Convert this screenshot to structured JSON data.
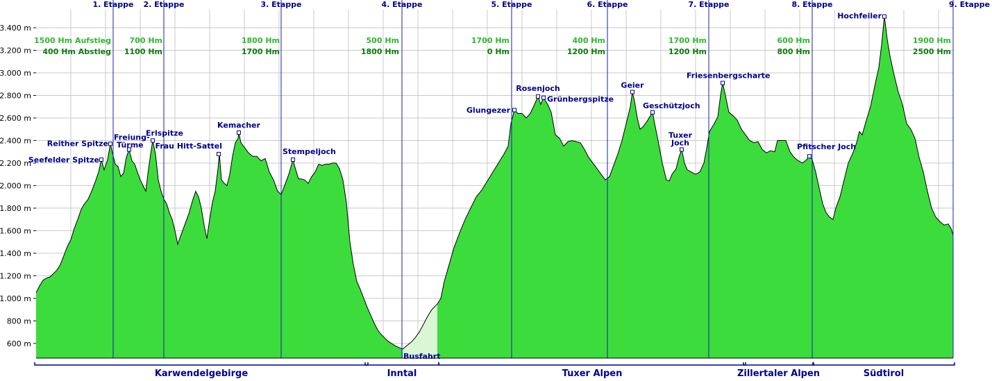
{
  "chart_data": {
    "type": "area",
    "xlabel": "",
    "ylabel": "",
    "ylim": [
      470,
      3560
    ],
    "xlim": [
      0,
      1321
    ],
    "grid": true,
    "colors": {
      "fill": "#3ddc3d",
      "bus_fill": "#d9f7d3",
      "line": "#000000",
      "grid": "#c8c8c8",
      "stage": "#1c1caa",
      "label": "#00008b"
    },
    "y_ticks": [
      {
        "v": 600,
        "label": "600 m"
      },
      {
        "v": 800,
        "label": "800 m"
      },
      {
        "v": 1000,
        "label": "1.000 m"
      },
      {
        "v": 1200,
        "label": "1.200 m"
      },
      {
        "v": 1400,
        "label": "1.400 m"
      },
      {
        "v": 1600,
        "label": "1.600 m"
      },
      {
        "v": 1800,
        "label": "1.800 m"
      },
      {
        "v": 2000,
        "label": "2.000 m"
      },
      {
        "v": 2200,
        "label": "2.200 m"
      },
      {
        "v": 2400,
        "label": "2.400 m"
      },
      {
        "v": 2600,
        "label": "2.600 m"
      },
      {
        "v": 2800,
        "label": "2.800 m"
      },
      {
        "v": 3000,
        "label": "3.000 m"
      },
      {
        "v": 3200,
        "label": "3.200 m"
      },
      {
        "v": 3400,
        "label": "3.400 m"
      }
    ],
    "stages": [
      {
        "x": 111,
        "label": "1. Etappe"
      },
      {
        "x": 184,
        "label": "2. Etappe"
      },
      {
        "x": 353,
        "label": "3. Etappe"
      },
      {
        "x": 527,
        "label": "4. Etappe"
      },
      {
        "x": 685,
        "label": "5. Etappe"
      },
      {
        "x": 823,
        "label": "6. Etappe"
      },
      {
        "x": 969,
        "label": "7. Etappe"
      },
      {
        "x": 1118,
        "label": "8. Etappe"
      },
      {
        "x": 1321,
        "label": "9. Etappe"
      }
    ],
    "elevation_gain": [
      {
        "x": 108,
        "up": "1500 Hm Aufstieg",
        "down": "400 Hm Abstieg"
      },
      {
        "x": 182,
        "up": "700  Hm",
        "down": "1100 Hm"
      },
      {
        "x": 351,
        "up": "1800 Hm",
        "down": "1700 Hm"
      },
      {
        "x": 523,
        "up": "500  Hm",
        "down": "1800 Hm"
      },
      {
        "x": 682,
        "up": "1700 Hm",
        "down": "0   Hm"
      },
      {
        "x": 820,
        "up": "400 Hm",
        "down": "1200 Hm"
      },
      {
        "x": 966,
        "up": "1700 Hm",
        "down": "1200 Hm"
      },
      {
        "x": 1115,
        "up": "600 Hm",
        "down": "800 Hm"
      },
      {
        "x": 1318,
        "up": "1900 Hm",
        "down": "2500 Hm"
      }
    ],
    "waypoints": [
      {
        "x": 94,
        "y": 2230,
        "label": "Seefelder Spitze",
        "anchor": "end",
        "dx": -3,
        "dy": 4
      },
      {
        "x": 107,
        "y": 2370,
        "label": "Reither Spitze",
        "anchor": "end",
        "dx": -3,
        "dy": 3
      },
      {
        "x": 134,
        "y": 2320,
        "label": "Freiung-",
        "anchor": "start",
        "dx": -22,
        "dy": -14
      },
      {
        "x": 134,
        "y": 2320,
        "label": "Türme",
        "anchor": "start",
        "dx": -18,
        "dy": -3
      },
      {
        "x": 168,
        "y": 2400,
        "label": "Erlspitze",
        "anchor": "start",
        "dx": -10,
        "dy": -7
      },
      {
        "x": 263,
        "y": 2280,
        "label": "Frau Hitt-Sattel",
        "anchor": "end",
        "dx": 5,
        "dy": -8
      },
      {
        "x": 292,
        "y": 2470,
        "label": "Kemacher",
        "anchor": "middle",
        "dx": 0,
        "dy": -7
      },
      {
        "x": 370,
        "y": 2230,
        "label": "Stempeljoch",
        "anchor": "start",
        "dx": -15,
        "dy": -8
      },
      {
        "x": 528,
        "y": 550,
        "label": "Busfahrt",
        "anchor": "start",
        "dx": 1,
        "dy": 14
      },
      {
        "x": 689,
        "y": 2670,
        "label": "Glungezer",
        "anchor": "end",
        "dx": -6,
        "dy": 4
      },
      {
        "x": 723,
        "y": 2790,
        "label": "Rosenjoch",
        "anchor": "middle",
        "dx": 0,
        "dy": -8
      },
      {
        "x": 731,
        "y": 2780,
        "label": "Grünbergspitze",
        "anchor": "start",
        "dx": 5,
        "dy": 6
      },
      {
        "x": 859,
        "y": 2830,
        "label": "Geier",
        "anchor": "middle",
        "dx": 0,
        "dy": -6
      },
      {
        "x": 888,
        "y": 2650,
        "label": "Geschützjoch",
        "anchor": "start",
        "dx": -14,
        "dy": -6
      },
      {
        "x": 930,
        "y": 2320,
        "label": "Tuxer",
        "anchor": "middle",
        "dx": -2,
        "dy": -17
      },
      {
        "x": 930,
        "y": 2320,
        "label": "Joch",
        "anchor": "middle",
        "dx": -2,
        "dy": -6
      },
      {
        "x": 989,
        "y": 2910,
        "label": "Friesenbergscharte",
        "anchor": "start",
        "dx": -52,
        "dy": -7
      },
      {
        "x": 1114,
        "y": 2260,
        "label": "Pfitscher Joch",
        "anchor": "start",
        "dx": -18,
        "dy": -10
      },
      {
        "x": 1222,
        "y": 3500,
        "label": "Hochfeiler",
        "anchor": "end",
        "dx": -4,
        "dy": 3
      }
    ],
    "regions": [
      {
        "x0": 0,
        "x1": 476,
        "label": "Karwendelgebirge"
      },
      {
        "x0": 476,
        "x1": 578,
        "label": "Inntal"
      },
      {
        "x0": 582,
        "x1": 1020,
        "label": "Tuxer Alpen"
      },
      {
        "x0": 1021,
        "x1": 1118,
        "label": "Zillertaler Alpen"
      },
      {
        "x0": 1121,
        "x1": 1321,
        "label": "Südtirol"
      }
    ],
    "bus_segment": [
      528,
      578
    ],
    "profile": [
      [
        0,
        1050
      ],
      [
        5,
        1110
      ],
      [
        10,
        1160
      ],
      [
        15,
        1180
      ],
      [
        20,
        1190
      ],
      [
        25,
        1220
      ],
      [
        30,
        1250
      ],
      [
        35,
        1300
      ],
      [
        40,
        1380
      ],
      [
        45,
        1460
      ],
      [
        50,
        1520
      ],
      [
        55,
        1620
      ],
      [
        60,
        1700
      ],
      [
        65,
        1790
      ],
      [
        70,
        1840
      ],
      [
        75,
        1880
      ],
      [
        80,
        1950
      ],
      [
        85,
        2030
      ],
      [
        90,
        2120
      ],
      [
        94,
        2230
      ],
      [
        98,
        2140
      ],
      [
        103,
        2230
      ],
      [
        107,
        2370
      ],
      [
        110,
        2290
      ],
      [
        114,
        2190
      ],
      [
        118,
        2170
      ],
      [
        122,
        2080
      ],
      [
        126,
        2110
      ],
      [
        130,
        2250
      ],
      [
        134,
        2320
      ],
      [
        138,
        2220
      ],
      [
        142,
        2190
      ],
      [
        146,
        2120
      ],
      [
        150,
        2050
      ],
      [
        154,
        2000
      ],
      [
        158,
        1950
      ],
      [
        162,
        2150
      ],
      [
        166,
        2320
      ],
      [
        168,
        2400
      ],
      [
        172,
        2280
      ],
      [
        176,
        2050
      ],
      [
        180,
        1950
      ],
      [
        184,
        1880
      ],
      [
        188,
        1840
      ],
      [
        192,
        1760
      ],
      [
        196,
        1700
      ],
      [
        200,
        1600
      ],
      [
        204,
        1480
      ],
      [
        208,
        1550
      ],
      [
        214,
        1650
      ],
      [
        220,
        1750
      ],
      [
        226,
        1880
      ],
      [
        230,
        1950
      ],
      [
        234,
        1900
      ],
      [
        238,
        1800
      ],
      [
        242,
        1650
      ],
      [
        246,
        1530
      ],
      [
        250,
        1700
      ],
      [
        254,
        1850
      ],
      [
        258,
        1950
      ],
      [
        262,
        2150
      ],
      [
        264,
        2280
      ],
      [
        267,
        2050
      ],
      [
        271,
        2020
      ],
      [
        275,
        2000
      ],
      [
        279,
        2100
      ],
      [
        283,
        2260
      ],
      [
        287,
        2380
      ],
      [
        291,
        2420
      ],
      [
        292,
        2470
      ],
      [
        295,
        2380
      ],
      [
        300,
        2340
      ],
      [
        306,
        2290
      ],
      [
        312,
        2260
      ],
      [
        318,
        2260
      ],
      [
        324,
        2220
      ],
      [
        330,
        2240
      ],
      [
        336,
        2120
      ],
      [
        342,
        2050
      ],
      [
        348,
        1950
      ],
      [
        353,
        1920
      ],
      [
        358,
        2000
      ],
      [
        364,
        2100
      ],
      [
        370,
        2230
      ],
      [
        374,
        2140
      ],
      [
        378,
        2060
      ],
      [
        382,
        2060
      ],
      [
        387,
        2050
      ],
      [
        392,
        2020
      ],
      [
        397,
        2080
      ],
      [
        402,
        2120
      ],
      [
        407,
        2190
      ],
      [
        412,
        2180
      ],
      [
        417,
        2190
      ],
      [
        422,
        2190
      ],
      [
        427,
        2200
      ],
      [
        432,
        2200
      ],
      [
        437,
        2150
      ],
      [
        442,
        2050
      ],
      [
        447,
        1850
      ],
      [
        452,
        1500
      ],
      [
        457,
        1300
      ],
      [
        462,
        1150
      ],
      [
        467,
        1080
      ],
      [
        472,
        1000
      ],
      [
        477,
        920
      ],
      [
        482,
        850
      ],
      [
        487,
        780
      ],
      [
        492,
        720
      ],
      [
        497,
        680
      ],
      [
        502,
        650
      ],
      [
        507,
        620
      ],
      [
        512,
        600
      ],
      [
        517,
        580
      ],
      [
        522,
        565
      ],
      [
        528,
        550
      ],
      [
        534,
        580
      ],
      [
        540,
        610
      ],
      [
        546,
        650
      ],
      [
        552,
        700
      ],
      [
        558,
        770
      ],
      [
        564,
        840
      ],
      [
        570,
        900
      ],
      [
        578,
        950
      ],
      [
        583,
        1000
      ],
      [
        588,
        1150
      ],
      [
        595,
        1300
      ],
      [
        602,
        1450
      ],
      [
        610,
        1580
      ],
      [
        618,
        1700
      ],
      [
        626,
        1800
      ],
      [
        634,
        1900
      ],
      [
        642,
        1960
      ],
      [
        650,
        2040
      ],
      [
        658,
        2120
      ],
      [
        666,
        2200
      ],
      [
        674,
        2280
      ],
      [
        680,
        2350
      ],
      [
        684,
        2550
      ],
      [
        689,
        2670
      ],
      [
        694,
        2640
      ],
      [
        700,
        2640
      ],
      [
        706,
        2600
      ],
      [
        712,
        2640
      ],
      [
        718,
        2720
      ],
      [
        723,
        2790
      ],
      [
        727,
        2720
      ],
      [
        731,
        2780
      ],
      [
        737,
        2720
      ],
      [
        742,
        2650
      ],
      [
        748,
        2450
      ],
      [
        754,
        2420
      ],
      [
        760,
        2350
      ],
      [
        766,
        2390
      ],
      [
        772,
        2400
      ],
      [
        778,
        2390
      ],
      [
        784,
        2380
      ],
      [
        790,
        2320
      ],
      [
        796,
        2250
      ],
      [
        802,
        2200
      ],
      [
        808,
        2150
      ],
      [
        814,
        2100
      ],
      [
        820,
        2050
      ],
      [
        826,
        2080
      ],
      [
        832,
        2180
      ],
      [
        838,
        2280
      ],
      [
        844,
        2400
      ],
      [
        850,
        2550
      ],
      [
        856,
        2700
      ],
      [
        859,
        2830
      ],
      [
        862,
        2750
      ],
      [
        866,
        2600
      ],
      [
        870,
        2500
      ],
      [
        874,
        2520
      ],
      [
        880,
        2570
      ],
      [
        885,
        2620
      ],
      [
        888,
        2650
      ],
      [
        891,
        2550
      ],
      [
        896,
        2400
      ],
      [
        902,
        2200
      ],
      [
        908,
        2050
      ],
      [
        912,
        2040
      ],
      [
        916,
        2100
      ],
      [
        922,
        2150
      ],
      [
        926,
        2250
      ],
      [
        930,
        2320
      ],
      [
        934,
        2200
      ],
      [
        938,
        2140
      ],
      [
        944,
        2120
      ],
      [
        950,
        2100
      ],
      [
        956,
        2120
      ],
      [
        962,
        2200
      ],
      [
        966,
        2330
      ],
      [
        970,
        2480
      ],
      [
        976,
        2540
      ],
      [
        982,
        2610
      ],
      [
        986,
        2800
      ],
      [
        989,
        2910
      ],
      [
        993,
        2800
      ],
      [
        998,
        2650
      ],
      [
        1004,
        2620
      ],
      [
        1010,
        2580
      ],
      [
        1016,
        2500
      ],
      [
        1022,
        2450
      ],
      [
        1028,
        2400
      ],
      [
        1034,
        2380
      ],
      [
        1040,
        2390
      ],
      [
        1046,
        2320
      ],
      [
        1052,
        2290
      ],
      [
        1058,
        2310
      ],
      [
        1064,
        2300
      ],
      [
        1068,
        2400
      ],
      [
        1074,
        2400
      ],
      [
        1080,
        2400
      ],
      [
        1086,
        2300
      ],
      [
        1092,
        2250
      ],
      [
        1098,
        2220
      ],
      [
        1104,
        2200
      ],
      [
        1110,
        2230
      ],
      [
        1114,
        2260
      ],
      [
        1118,
        2230
      ],
      [
        1123,
        2120
      ],
      [
        1128,
        1980
      ],
      [
        1133,
        1840
      ],
      [
        1138,
        1760
      ],
      [
        1143,
        1720
      ],
      [
        1148,
        1700
      ],
      [
        1152,
        1800
      ],
      [
        1158,
        1900
      ],
      [
        1164,
        2050
      ],
      [
        1170,
        2200
      ],
      [
        1176,
        2280
      ],
      [
        1182,
        2380
      ],
      [
        1186,
        2480
      ],
      [
        1190,
        2450
      ],
      [
        1196,
        2580
      ],
      [
        1202,
        2700
      ],
      [
        1208,
        2880
      ],
      [
        1214,
        3050
      ],
      [
        1218,
        3250
      ],
      [
        1222,
        3500
      ],
      [
        1226,
        3300
      ],
      [
        1230,
        3150
      ],
      [
        1236,
        2980
      ],
      [
        1242,
        2830
      ],
      [
        1248,
        2720
      ],
      [
        1254,
        2550
      ],
      [
        1260,
        2500
      ],
      [
        1266,
        2420
      ],
      [
        1272,
        2250
      ],
      [
        1278,
        2120
      ],
      [
        1284,
        1950
      ],
      [
        1290,
        1800
      ],
      [
        1296,
        1720
      ],
      [
        1302,
        1680
      ],
      [
        1308,
        1650
      ],
      [
        1314,
        1660
      ],
      [
        1318,
        1620
      ],
      [
        1321,
        1560
      ]
    ]
  }
}
